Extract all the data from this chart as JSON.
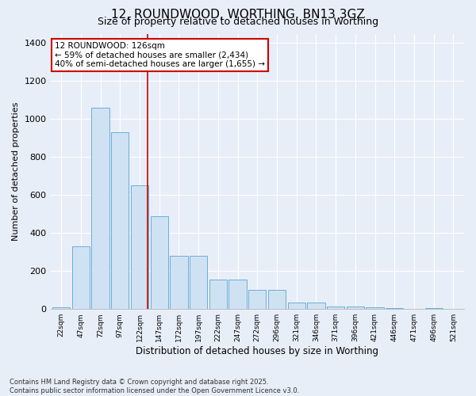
{
  "title1": "12, ROUNDWOOD, WORTHING, BN13 3GZ",
  "title2": "Size of property relative to detached houses in Worthing",
  "xlabel": "Distribution of detached houses by size in Worthing",
  "ylabel": "Number of detached properties",
  "categories": [
    "22sqm",
    "47sqm",
    "72sqm",
    "97sqm",
    "122sqm",
    "147sqm",
    "172sqm",
    "197sqm",
    "222sqm",
    "247sqm",
    "272sqm",
    "296sqm",
    "321sqm",
    "346sqm",
    "371sqm",
    "396sqm",
    "421sqm",
    "446sqm",
    "471sqm",
    "496sqm",
    "521sqm"
  ],
  "values": [
    10,
    330,
    1060,
    930,
    650,
    490,
    280,
    280,
    155,
    155,
    100,
    100,
    35,
    35,
    15,
    15,
    10,
    5,
    0,
    5,
    0
  ],
  "bar_color": "#cfe2f3",
  "bar_edge_color": "#6baed6",
  "redline_x": 4.425,
  "annotation_text": "12 ROUNDWOOD: 126sqm\n← 59% of detached houses are smaller (2,434)\n40% of semi-detached houses are larger (1,655) →",
  "annotation_box_color": "#ffffff",
  "annotation_border_color": "#cc0000",
  "ylim": [
    0,
    1450
  ],
  "yticks": [
    0,
    200,
    400,
    600,
    800,
    1000,
    1200,
    1400
  ],
  "footer": "Contains HM Land Registry data © Crown copyright and database right 2025.\nContains public sector information licensed under the Open Government Licence v3.0.",
  "bg_color": "#e8eef8",
  "grid_color": "#ffffff",
  "title_fontsize": 11,
  "subtitle_fontsize": 9
}
